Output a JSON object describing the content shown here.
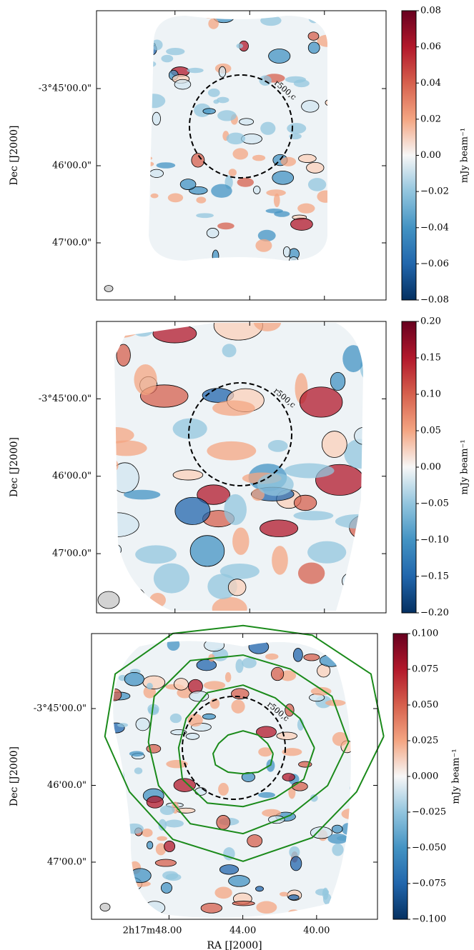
{
  "chart_data": [
    {
      "type": "image",
      "ylabel": "Dec [J2000]",
      "colorbar_label": "mJy beam⁻¹",
      "annotation": "r500,c",
      "colormap": "RdBu_r",
      "xlim": [
        52.2,
        36.7
      ],
      "xticks": [
        48,
        44,
        40
      ],
      "ylim": [
        -3.73318,
        -3.79568
      ],
      "yticks": [
        {
          "value": -3.75,
          "label": "-3°45'00.0\""
        },
        {
          "value": -3.766667,
          "label": "46'00.0\""
        },
        {
          "value": -3.783333,
          "label": "47'00.0\""
        }
      ],
      "clim": [
        -0.08,
        0.08
      ],
      "cticks": [
        {
          "value": 0.08,
          "label": "0.08"
        },
        {
          "value": 0.06,
          "label": "0.06"
        },
        {
          "value": 0.04,
          "label": "0.04"
        },
        {
          "value": 0.02,
          "label": "0.02"
        },
        {
          "value": 0,
          "label": "0.00"
        },
        {
          "value": -0.02,
          "label": "−0.02"
        },
        {
          "value": -0.04,
          "label": "−0.04"
        },
        {
          "value": -0.06,
          "label": "−0.06"
        },
        {
          "value": -0.08,
          "label": "−0.08"
        }
      ]
    },
    {
      "type": "image",
      "ylabel": "Dec [J2000]",
      "colorbar_label": "mJy beam⁻¹",
      "annotation": "r500,c",
      "colormap": "RdBu_r",
      "xlim": [
        52.2,
        36.7
      ],
      "xticks": [
        48,
        44,
        40
      ],
      "ylim": [
        -3.73334,
        -3.79608
      ],
      "yticks": [
        {
          "value": -3.75,
          "label": "-3°45'00.0\""
        },
        {
          "value": -3.766667,
          "label": "46'00.0\""
        },
        {
          "value": -3.783333,
          "label": "47'00.0\""
        }
      ],
      "clim": [
        -0.2,
        0.2
      ],
      "cticks": [
        {
          "value": 0.2,
          "label": "0.20"
        },
        {
          "value": 0.15,
          "label": "0.15"
        },
        {
          "value": 0.1,
          "label": "0.10"
        },
        {
          "value": 0.05,
          "label": "0.05"
        },
        {
          "value": 0,
          "label": "0.00"
        },
        {
          "value": -0.05,
          "label": "−0.05"
        },
        {
          "value": -0.1,
          "label": "−0.10"
        },
        {
          "value": -0.15,
          "label": "−0.15"
        },
        {
          "value": -0.2,
          "label": "−0.20"
        }
      ]
    },
    {
      "type": "image",
      "ylabel": "Dec [J2000]",
      "xlabel": "RA [J2000]",
      "colorbar_label": "mJy beam⁻¹",
      "annotation": "r500,c",
      "colormap": "RdBu_r",
      "xlim": [
        52.2,
        36.7
      ],
      "xticks": [
        {
          "value": 48,
          "label": "2h17m48.00"
        },
        {
          "value": 44,
          "label": "44.00"
        },
        {
          "value": 40,
          "label": "40.00"
        }
      ],
      "ylim": [
        -3.73372,
        -3.79574
      ],
      "yticks": [
        {
          "value": -3.75,
          "label": "-3°45'00.0\""
        },
        {
          "value": -3.766667,
          "label": "46'00.0\""
        },
        {
          "value": -3.783333,
          "label": "47'00.0\""
        }
      ],
      "clim": [
        -0.1,
        0.1
      ],
      "cticks": [
        {
          "value": 0.1,
          "label": "0.100"
        },
        {
          "value": 0.075,
          "label": "0.075"
        },
        {
          "value": 0.05,
          "label": "0.050"
        },
        {
          "value": 0.025,
          "label": "0.025"
        },
        {
          "value": 0,
          "label": "0.000"
        },
        {
          "value": -0.025,
          "label": "−0.025"
        },
        {
          "value": -0.05,
          "label": "−0.050"
        },
        {
          "value": -0.075,
          "label": "−0.075"
        },
        {
          "value": -0.1,
          "label": "−0.100"
        }
      ]
    }
  ]
}
